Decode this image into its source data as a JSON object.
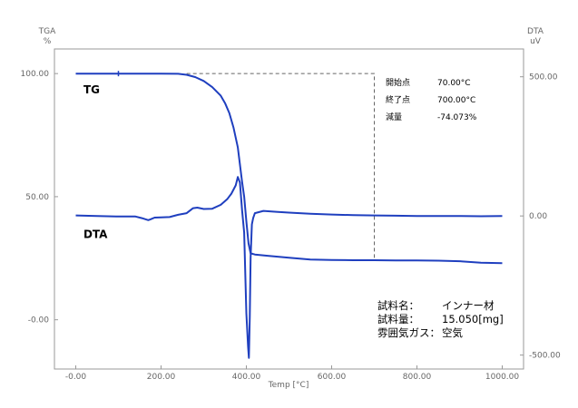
{
  "chart_data": {
    "type": "line",
    "title": "",
    "xlabel": "Temp [°C]",
    "xlim": [
      -50,
      1050
    ],
    "x_ticks": [
      -0.0,
      200.0,
      400.0,
      600.0,
      800.0,
      1000.0
    ],
    "x_tick_labels": [
      "-0.00",
      "200.00",
      "400.00",
      "600.00",
      "800.00",
      "1000.00"
    ],
    "left_axis": {
      "label_line1": "TGA",
      "label_line2": "%",
      "ylim": [
        -20,
        110
      ],
      "ticks": [
        100.0,
        50.0,
        -0.0
      ],
      "tick_labels": [
        "100.00",
        "50.00",
        "-0.00"
      ]
    },
    "right_axis": {
      "label_line1": "DTA",
      "label_line2": "uV",
      "ylim": [
        -550,
        600
      ],
      "ticks": [
        500.0,
        0.0,
        -500.0
      ],
      "tick_labels": [
        "500.00",
        "0.00",
        "-500.00"
      ]
    },
    "grid": false,
    "series": [
      {
        "name": "TG",
        "axis": "left",
        "color": "#1f3fbf",
        "x": [
          0,
          100,
          200,
          240,
          260,
          280,
          300,
          320,
          340,
          350,
          360,
          370,
          380,
          390,
          395,
          400,
          405,
          410,
          420,
          450,
          500,
          550,
          600,
          650,
          700,
          750,
          800,
          850,
          900,
          950,
          1000
        ],
        "y": [
          100,
          100,
          100,
          99.9,
          99.5,
          98.6,
          97,
          94.5,
          91,
          88,
          84,
          78,
          70,
          56,
          50,
          40,
          31,
          27,
          26.5,
          26,
          25.2,
          24.5,
          24.3,
          24.2,
          24.2,
          24.1,
          24.1,
          24.0,
          23.8,
          23.2,
          23
        ]
      },
      {
        "name": "DTA",
        "axis": "right",
        "color": "#1f3fbf",
        "x": [
          0,
          50,
          100,
          140,
          155,
          170,
          175,
          185,
          200,
          220,
          240,
          260,
          275,
          285,
          300,
          320,
          340,
          355,
          365,
          375,
          380,
          385,
          390,
          395,
          400,
          404,
          406,
          408,
          410,
          413,
          416,
          420,
          440,
          470,
          500,
          550,
          600,
          650,
          700,
          750,
          800,
          850,
          900,
          950,
          1000
        ],
        "y": [
          2,
          0,
          -2,
          -2,
          -8,
          -15,
          -12,
          -6,
          -5,
          -4,
          4,
          10,
          28,
          30,
          25,
          26,
          40,
          60,
          80,
          110,
          140,
          120,
          20,
          -60,
          -350,
          -470,
          -510,
          -360,
          -150,
          -30,
          -8,
          10,
          18,
          15,
          12,
          8,
          5,
          3,
          2,
          1,
          0,
          0,
          0,
          -1,
          0
        ]
      }
    ],
    "series_labels": [
      {
        "text": "TG",
        "x": 18,
        "y_axis": "left",
        "y": 92
      },
      {
        "text": "DTA",
        "x": 18,
        "y_axis": "right",
        "y": -80
      }
    ],
    "guide_line": {
      "style": "dashed",
      "from_x": 260,
      "to_x": 700,
      "top_y": 100,
      "bottom_y": 24.2
    },
    "annotations": {
      "rows": [
        {
          "label": "開始点",
          "value": "70.00°C"
        },
        {
          "label": "終了点",
          "value": "700.00°C"
        },
        {
          "label": "減量",
          "value": "-74.073%"
        }
      ]
    },
    "sample_info": [
      {
        "label": "試料名：",
        "value": "インナー材"
      },
      {
        "label": "試料量：",
        "value": "15.050[mg]"
      },
      {
        "label": "雰囲気ガス：",
        "value": "空気"
      }
    ],
    "legend": "none",
    "colors": {
      "series": "#1f3fbf",
      "frame": "#999999",
      "guide": "#666666"
    }
  }
}
